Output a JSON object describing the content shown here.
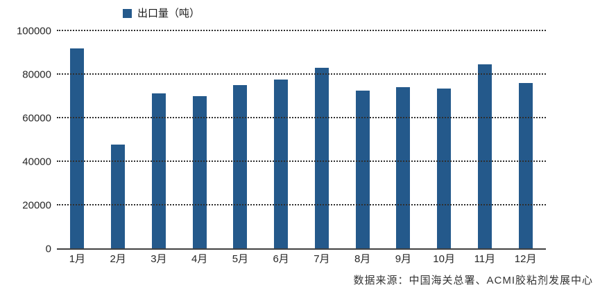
{
  "source_note": "数据来源：中国海关总署、ACMI胶粘剂发展中心",
  "chart_data": {
    "type": "bar",
    "title": "",
    "legend": "出口量（吨）",
    "legend_position": "top",
    "categories": [
      "1月",
      "2月",
      "3月",
      "4月",
      "5月",
      "6月",
      "7月",
      "8月",
      "9月",
      "10月",
      "11月",
      "12月"
    ],
    "values": [
      92000,
      48000,
      71300,
      70200,
      75300,
      77900,
      83100,
      72800,
      74400,
      73600,
      84700,
      76100
    ],
    "xlabel": "",
    "ylabel": "",
    "ylim": [
      0,
      100000
    ],
    "yticks": [
      0,
      20000,
      40000,
      60000,
      80000,
      100000
    ],
    "grid": "horizontal-dotted",
    "bar_color": "#24598B",
    "axis_color": "#404040"
  }
}
